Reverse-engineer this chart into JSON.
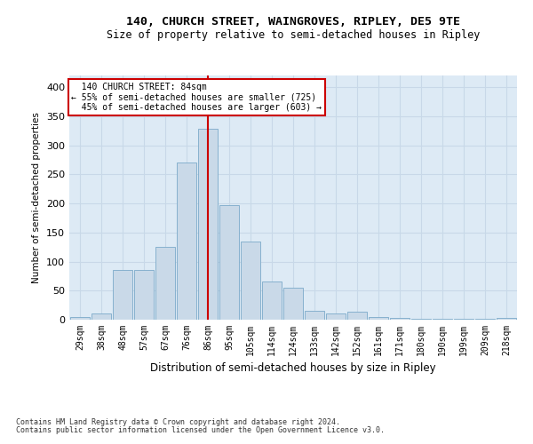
{
  "title1": "140, CHURCH STREET, WAINGROVES, RIPLEY, DE5 9TE",
  "title2": "Size of property relative to semi-detached houses in Ripley",
  "xlabel": "Distribution of semi-detached houses by size in Ripley",
  "ylabel": "Number of semi-detached properties",
  "categories": [
    "29sqm",
    "38sqm",
    "48sqm",
    "57sqm",
    "67sqm",
    "76sqm",
    "86sqm",
    "95sqm",
    "105sqm",
    "114sqm",
    "124sqm",
    "133sqm",
    "142sqm",
    "152sqm",
    "161sqm",
    "171sqm",
    "180sqm",
    "190sqm",
    "199sqm",
    "209sqm",
    "218sqm"
  ],
  "values": [
    5,
    10,
    85,
    85,
    125,
    270,
    328,
    197,
    135,
    65,
    55,
    16,
    10,
    14,
    5,
    3,
    2,
    1,
    1,
    1,
    3
  ],
  "bar_color": "#c9d9e8",
  "bar_edge_color": "#7baac9",
  "highlight_index": 6,
  "property_label": "140 CHURCH STREET: 84sqm",
  "smaller_pct": "55% of semi-detached houses are smaller (725)",
  "larger_pct": "45% of semi-detached houses are larger (603)",
  "annotation_box_color": "#ffffff",
  "annotation_box_edge": "#cc0000",
  "vline_color": "#cc0000",
  "grid_color": "#c8d8e8",
  "background_color": "#ddeaf5",
  "footer1": "Contains HM Land Registry data © Crown copyright and database right 2024.",
  "footer2": "Contains public sector information licensed under the Open Government Licence v3.0.",
  "ylim": [
    0,
    420
  ],
  "yticks": [
    0,
    50,
    100,
    150,
    200,
    250,
    300,
    350,
    400
  ]
}
